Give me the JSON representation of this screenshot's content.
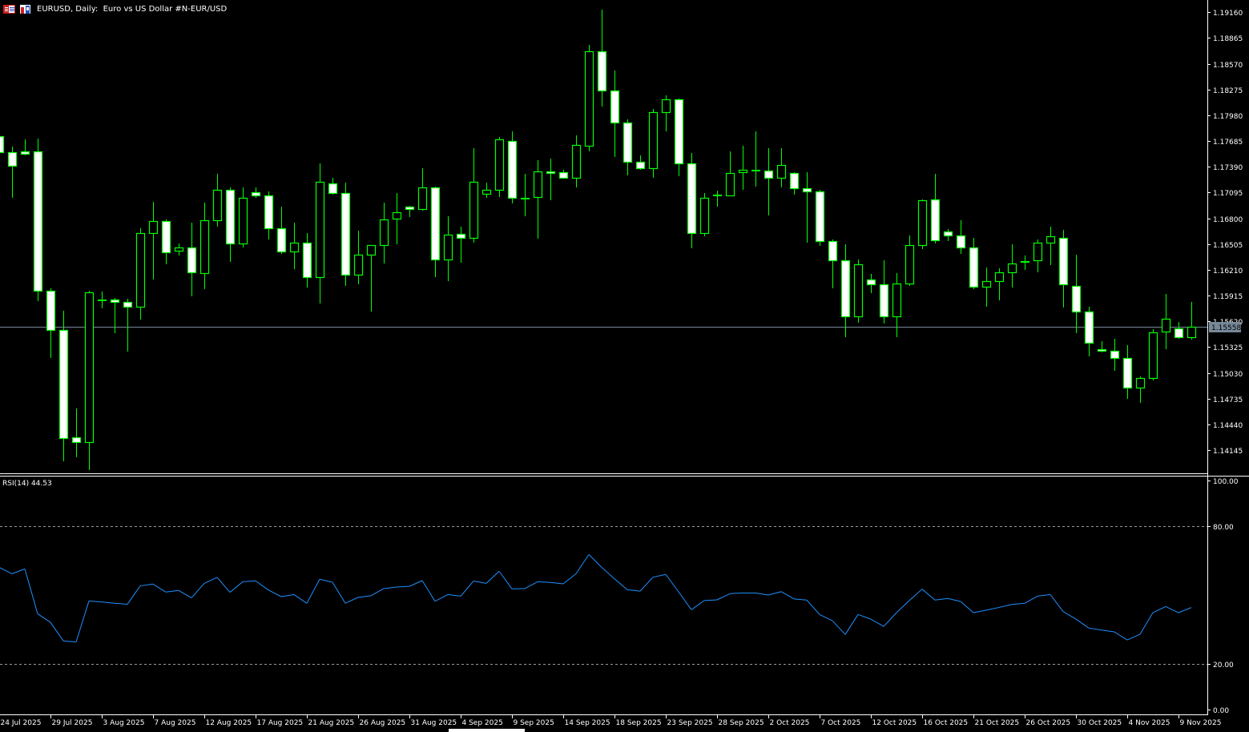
{
  "header": {
    "title": "EURUSD, Daily:  Euro vs US Dollar #N-EUR/USD",
    "icons": [
      "market-watch-icon",
      "chart-window-icon"
    ]
  },
  "colors": {
    "background": "#000000",
    "candle_outline": "#00ff00",
    "bull_body": "#000000",
    "bear_body": "#ffffff",
    "rsi_line": "#1e90ff",
    "current_price_line": "#778899",
    "axis": "#ffffff"
  },
  "chart_data": [
    {
      "type": "candlestick",
      "symbol": "EURUSD",
      "timeframe": "Daily",
      "ylim": [
        1.1387,
        1.193
      ],
      "yticks": [
        "1.19160",
        "1.18865",
        "1.18570",
        "1.18275",
        "1.17980",
        "1.17685",
        "1.17390",
        "1.17095",
        "1.16800",
        "1.16505",
        "1.16210",
        "1.15915",
        "1.15620",
        "1.15325",
        "1.15030",
        "1.14735",
        "1.14440",
        "1.14145"
      ],
      "xtick_labels": [
        "24 Jul 2025",
        "29 Jul 2025",
        "3 Aug 2025",
        "7 Aug 2025",
        "12 Aug 2025",
        "17 Aug 2025",
        "21 Aug 2025",
        "26 Aug 2025",
        "31 Aug 2025",
        "4 Sep 2025",
        "9 Sep 2025",
        "14 Sep 2025",
        "18 Sep 2025",
        "23 Sep 2025",
        "28 Sep 2025",
        "2 Oct 2025",
        "7 Oct 2025",
        "12 Oct 2025",
        "16 Oct 2025",
        "21 Oct 2025",
        "26 Oct 2025",
        "30 Oct 2025",
        "4 Nov 2025",
        "9 Nov 2025"
      ],
      "current_price": "1.15558",
      "ohlc_fields": [
        "open",
        "high",
        "low",
        "close"
      ],
      "ohlc": [
        [
          1.1774,
          1.1776,
          1.1754,
          1.1756
        ],
        [
          1.1756,
          1.1762,
          1.1703,
          1.174
        ],
        [
          1.1757,
          1.177,
          1.1752,
          1.1754
        ],
        [
          1.1757,
          1.1771,
          1.1585,
          1.1597
        ],
        [
          1.1597,
          1.16,
          1.152,
          1.1552
        ],
        [
          1.1552,
          1.1574,
          1.1402,
          1.1428
        ],
        [
          1.1429,
          1.1462,
          1.1406,
          1.1424
        ],
        [
          1.1424,
          1.1597,
          1.1392,
          1.1595
        ],
        [
          1.1587,
          1.1596,
          1.1577,
          1.1587
        ],
        [
          1.1587,
          1.1589,
          1.1548,
          1.1584
        ],
        [
          1.1584,
          1.1588,
          1.1527,
          1.1579
        ],
        [
          1.1579,
          1.1669,
          1.1564,
          1.1663
        ],
        [
          1.1663,
          1.1699,
          1.161,
          1.1677
        ],
        [
          1.1677,
          1.1679,
          1.1627,
          1.1641
        ],
        [
          1.1643,
          1.1651,
          1.1637,
          1.1647
        ],
        [
          1.1647,
          1.1675,
          1.1591,
          1.1618
        ],
        [
          1.1617,
          1.1698,
          1.1599,
          1.1678
        ],
        [
          1.1678,
          1.1731,
          1.167,
          1.1713
        ],
        [
          1.1713,
          1.1715,
          1.163,
          1.1651
        ],
        [
          1.1651,
          1.1715,
          1.1647,
          1.1703
        ],
        [
          1.171,
          1.1715,
          1.1703,
          1.1706
        ],
        [
          1.1706,
          1.1711,
          1.1656,
          1.1669
        ],
        [
          1.1669,
          1.1693,
          1.1639,
          1.1642
        ],
        [
          1.1642,
          1.1675,
          1.1622,
          1.1652
        ],
        [
          1.1652,
          1.1663,
          1.1601,
          1.1613
        ],
        [
          1.1613,
          1.1743,
          1.1582,
          1.1722
        ],
        [
          1.172,
          1.1726,
          1.1707,
          1.1709
        ],
        [
          1.1709,
          1.1721,
          1.1603,
          1.1615
        ],
        [
          1.1615,
          1.1666,
          1.1604,
          1.1638
        ],
        [
          1.1638,
          1.1649,
          1.1573,
          1.1649
        ],
        [
          1.1649,
          1.1698,
          1.1628,
          1.1679
        ],
        [
          1.168,
          1.1709,
          1.165,
          1.1687
        ],
        [
          1.1693,
          1.1694,
          1.1681,
          1.1691
        ],
        [
          1.1691,
          1.1737,
          1.1689,
          1.1715
        ],
        [
          1.1715,
          1.1716,
          1.1613,
          1.1633
        ],
        [
          1.1633,
          1.1682,
          1.1608,
          1.1661
        ],
        [
          1.1662,
          1.167,
          1.1629,
          1.1658
        ],
        [
          1.1658,
          1.176,
          1.1652,
          1.1722
        ],
        [
          1.1708,
          1.1721,
          1.1703,
          1.1713
        ],
        [
          1.1713,
          1.1773,
          1.1704,
          1.177
        ],
        [
          1.1769,
          1.178,
          1.1697,
          1.1703
        ],
        [
          1.1703,
          1.1731,
          1.1682,
          1.1703
        ],
        [
          1.1704,
          1.1747,
          1.1657,
          1.1734
        ],
        [
          1.1734,
          1.1748,
          1.1701,
          1.1732
        ],
        [
          1.1733,
          1.1736,
          1.1725,
          1.1726
        ],
        [
          1.1726,
          1.1775,
          1.1715,
          1.1764
        ],
        [
          1.1763,
          1.1879,
          1.1757,
          1.1871
        ],
        [
          1.1871,
          1.1919,
          1.1808,
          1.1826
        ],
        [
          1.1826,
          1.1849,
          1.175,
          1.179
        ],
        [
          1.179,
          1.1793,
          1.1729,
          1.1745
        ],
        [
          1.1745,
          1.1752,
          1.1736,
          1.1737
        ],
        [
          1.1737,
          1.1805,
          1.1726,
          1.1802
        ],
        [
          1.1802,
          1.1821,
          1.178,
          1.1816
        ],
        [
          1.1816,
          1.1817,
          1.1728,
          1.1743
        ],
        [
          1.1743,
          1.1755,
          1.1646,
          1.1663
        ],
        [
          1.1663,
          1.1709,
          1.1659,
          1.1703
        ],
        [
          1.1707,
          1.1712,
          1.1693,
          1.1707
        ],
        [
          1.1706,
          1.1757,
          1.1706,
          1.1732
        ],
        [
          1.1733,
          1.1763,
          1.1713,
          1.1736
        ],
        [
          1.1736,
          1.178,
          1.1716,
          1.1735
        ],
        [
          1.1735,
          1.176,
          1.1683,
          1.1726
        ],
        [
          1.1726,
          1.176,
          1.1715,
          1.1741
        ],
        [
          1.1732,
          1.1733,
          1.1707,
          1.1714
        ],
        [
          1.1714,
          1.1733,
          1.1652,
          1.1711
        ],
        [
          1.1711,
          1.1713,
          1.1648,
          1.1654
        ],
        [
          1.1654,
          1.1656,
          1.16,
          1.1632
        ],
        [
          1.1632,
          1.165,
          1.1544,
          1.1568
        ],
        [
          1.1568,
          1.1633,
          1.156,
          1.1627
        ],
        [
          1.161,
          1.1616,
          1.1594,
          1.1604
        ],
        [
          1.1604,
          1.1632,
          1.1559,
          1.1568
        ],
        [
          1.1568,
          1.1617,
          1.1544,
          1.1605
        ],
        [
          1.1605,
          1.166,
          1.1603,
          1.1649
        ],
        [
          1.1649,
          1.1702,
          1.1645,
          1.1701
        ],
        [
          1.1702,
          1.1731,
          1.1651,
          1.1655
        ],
        [
          1.1665,
          1.1668,
          1.1654,
          1.166
        ],
        [
          1.166,
          1.1678,
          1.1639,
          1.1647
        ],
        [
          1.1647,
          1.1658,
          1.1599,
          1.1602
        ],
        [
          1.1602,
          1.1624,
          1.1579,
          1.1608
        ],
        [
          1.1608,
          1.1623,
          1.1586,
          1.1618
        ],
        [
          1.1618,
          1.165,
          1.1601,
          1.1628
        ],
        [
          1.1631,
          1.1637,
          1.1621,
          1.1631
        ],
        [
          1.1632,
          1.1656,
          1.1618,
          1.1652
        ],
        [
          1.1652,
          1.167,
          1.1626,
          1.1659
        ],
        [
          1.1658,
          1.1667,
          1.1578,
          1.1604
        ],
        [
          1.1603,
          1.1638,
          1.1548,
          1.1573
        ],
        [
          1.1573,
          1.1579,
          1.1522,
          1.1537
        ],
        [
          1.153,
          1.1539,
          1.1526,
          1.1528
        ],
        [
          1.1528,
          1.1542,
          1.1505,
          1.152
        ],
        [
          1.152,
          1.1535,
          1.1473,
          1.1486
        ],
        [
          1.1486,
          1.1499,
          1.1469,
          1.1497
        ],
        [
          1.1497,
          1.1553,
          1.1494,
          1.1549
        ],
        [
          1.155,
          1.1593,
          1.153,
          1.1565
        ],
        [
          1.1554,
          1.1561,
          1.1542,
          1.1544
        ],
        [
          1.1544,
          1.1584,
          1.1541,
          1.15558
        ]
      ]
    },
    {
      "type": "line",
      "title": "RSI(14) 44.53",
      "ylim": [
        0,
        100
      ],
      "yticks": [
        "100.00",
        "80.00",
        "20.00",
        "0.00"
      ],
      "levels": [
        80,
        20
      ],
      "values": [
        62.1,
        59.3,
        61.4,
        41.8,
        38.1,
        30.0,
        29.5,
        47.4,
        47.0,
        46.4,
        46.0,
        54.0,
        54.8,
        51.3,
        52.0,
        48.8,
        55.1,
        57.7,
        51.2,
        55.8,
        56.2,
        52.2,
        49.3,
        50.2,
        46.4,
        56.9,
        55.6,
        46.4,
        49.0,
        49.7,
        52.8,
        53.5,
        53.8,
        56.3,
        47.3,
        50.2,
        49.5,
        56.1,
        55.1,
        60.4,
        52.7,
        52.8,
        55.8,
        55.5,
        54.9,
        59.3,
        67.7,
        62.1,
        57.1,
        52.3,
        51.7,
        57.8,
        59.0,
        51.4,
        43.6,
        47.6,
        47.9,
        50.6,
        50.9,
        50.9,
        50.0,
        51.5,
        48.3,
        47.8,
        41.5,
        38.8,
        32.8,
        41.5,
        39.5,
        36.3,
        42.3,
        47.6,
        52.6,
        47.8,
        48.5,
        47.2,
        42.3,
        43.4,
        44.6,
        45.9,
        46.4,
        49.5,
        50.2,
        42.8,
        39.5,
        35.6,
        34.7,
        33.9,
        30.4,
        32.9,
        42.3,
        45.0,
        42.3,
        44.53
      ]
    }
  ]
}
